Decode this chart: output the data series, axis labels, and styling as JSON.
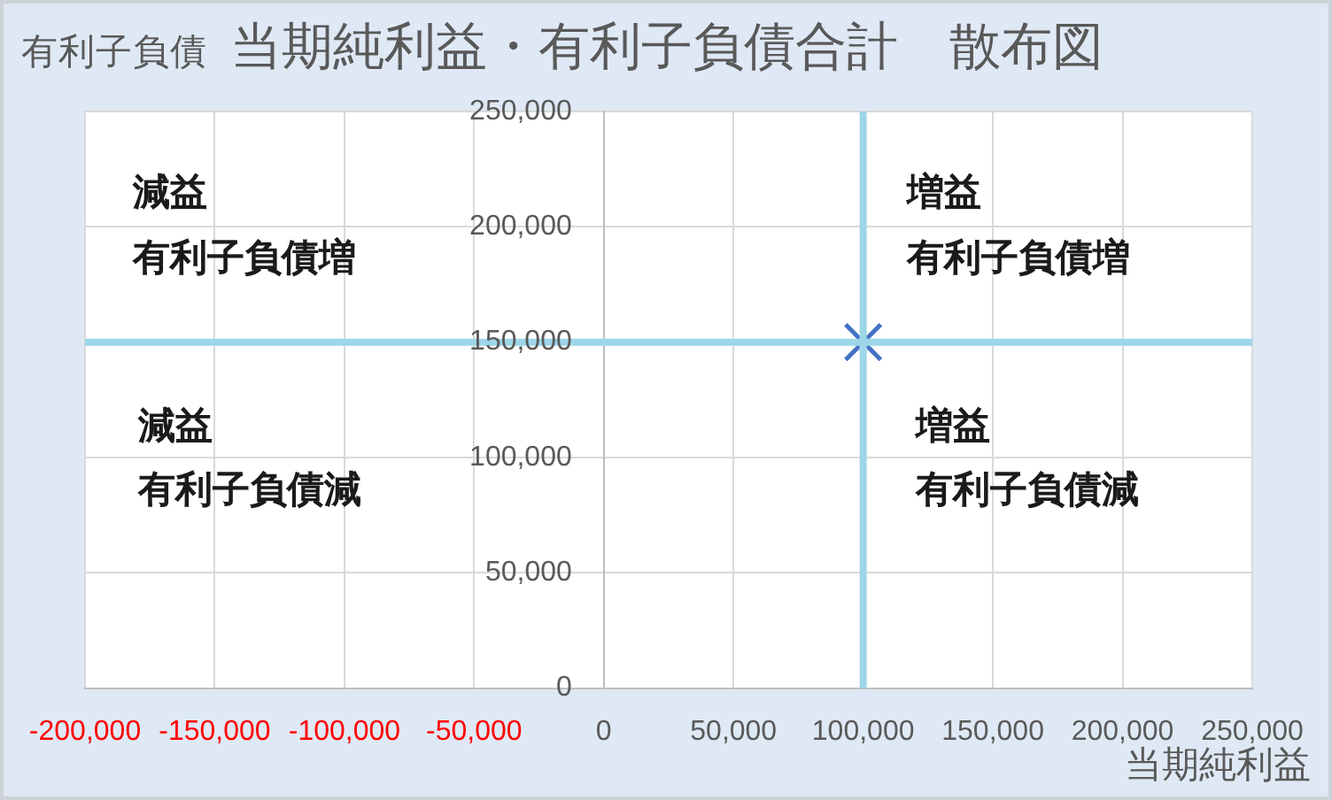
{
  "chart_data": {
    "type": "scatter",
    "title": "当期純利益・有利子負債合計　散布図",
    "xlabel": "当期純利益",
    "ylabel": "有利子負債",
    "x": [
      100000
    ],
    "values": [
      150000
    ],
    "color": "#4472c4",
    "marker": "cross",
    "grid": true,
    "errors": [
      [
        0,
        250000
      ]
    ],
    "xerrors": [
      [
        -200000,
        250000
      ]
    ],
    "xlim": [
      -200000,
      250000
    ],
    "xticks": [
      {
        "value": -200000,
        "label": "-200,000"
      },
      {
        "value": -150000,
        "label": "-150,000"
      },
      {
        "value": -100000,
        "label": "-100,000"
      },
      {
        "value": -50000,
        "label": "-50,000"
      },
      0,
      {
        "value": 50000,
        "label": "50,000"
      },
      {
        "value": 100000,
        "label": "100,000"
      },
      {
        "value": 150000,
        "label": "150,000"
      },
      {
        "value": 200000,
        "label": "200,000"
      },
      {
        "value": 250000,
        "label": "250,000"
      }
    ],
    "ylim": [
      0,
      250000
    ],
    "yticks": [
      0,
      {
        "value": 50000,
        "label": "50,000"
      },
      {
        "value": 100000,
        "label": "100,000"
      },
      {
        "value": 150000,
        "label": "150,000"
      },
      {
        "value": 200000,
        "label": "200,000"
      },
      {
        "value": 250000,
        "label": "250,000"
      }
    ],
    "annotations": [
      "減益",
      "増益",
      "有利子負債増",
      "有利子負債増",
      "減益",
      "増益",
      "有利子負債減",
      "有利子負債減"
    ]
  }
}
